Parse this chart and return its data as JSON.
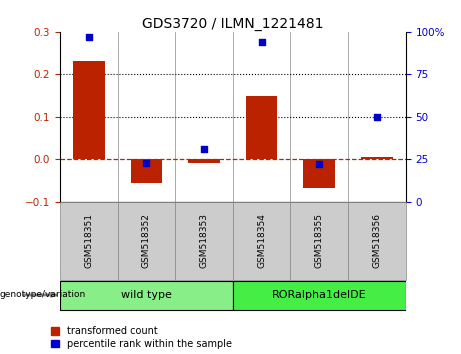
{
  "title": "GDS3720 / ILMN_1221481",
  "categories": [
    "GSM518351",
    "GSM518352",
    "GSM518353",
    "GSM518354",
    "GSM518355",
    "GSM518356"
  ],
  "bar_values": [
    0.232,
    -0.055,
    -0.008,
    0.148,
    -0.068,
    0.005
  ],
  "scatter_percentile": [
    97,
    23,
    31,
    94,
    22,
    50
  ],
  "ylim_left": [
    -0.1,
    0.3
  ],
  "ylim_right": [
    0,
    100
  ],
  "yticks_left": [
    -0.1,
    0.0,
    0.1,
    0.2,
    0.3
  ],
  "yticks_right": [
    0,
    25,
    50,
    75,
    100
  ],
  "hlines": [
    0.1,
    0.2
  ],
  "bar_color": "#bb2200",
  "scatter_color": "#0000cc",
  "zero_line_color": "#bb2200",
  "hline_color": "#000000",
  "group1_label": "wild type",
  "group2_label": "RORalpha1delDE",
  "group1_indices": [
    0,
    1,
    2
  ],
  "group2_indices": [
    3,
    4,
    5
  ],
  "group1_color": "#88ee88",
  "group2_color": "#44ee44",
  "genotype_label": "genotype/variation",
  "legend_bar_label": "transformed count",
  "legend_scatter_label": "percentile rank within the sample",
  "bar_width": 0.55,
  "tick_fontsize": 7.5,
  "title_fontsize": 10
}
